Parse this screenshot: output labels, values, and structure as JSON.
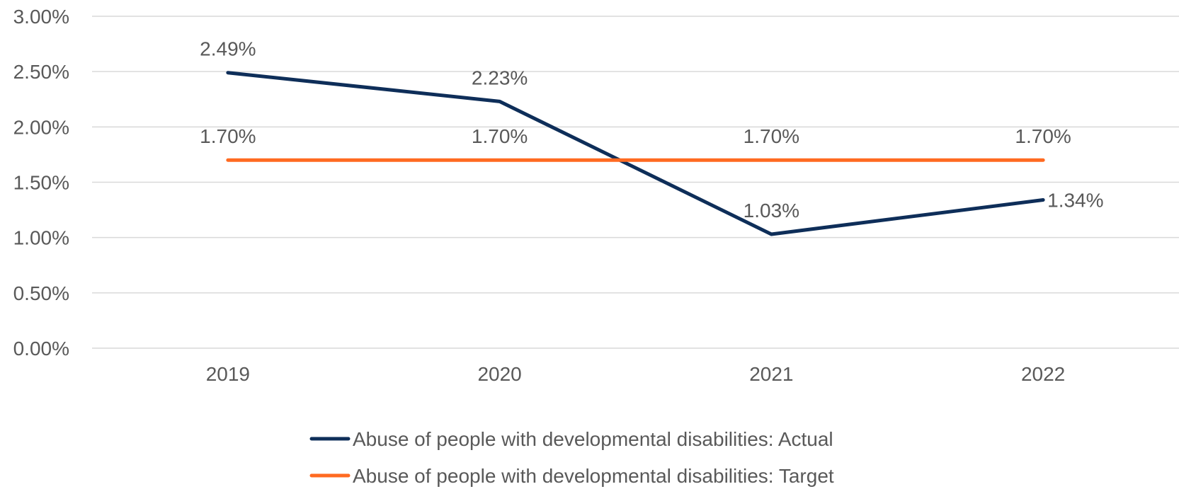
{
  "chart_data": {
    "type": "line",
    "categories": [
      "2019",
      "2020",
      "2021",
      "2022"
    ],
    "yticks": [
      "0.00%",
      "0.50%",
      "1.00%",
      "1.50%",
      "2.00%",
      "2.50%",
      "3.00%"
    ],
    "ylim": [
      0,
      3
    ],
    "grid": true,
    "legend_position": "bottom",
    "series": [
      {
        "name": "Abuse of people with developmental disabilities: Actual",
        "values": [
          2.49,
          2.23,
          1.03,
          1.34
        ],
        "labels": [
          "2.49%",
          "2.23%",
          "1.03%",
          "1.34%"
        ],
        "color": "#0e2e59"
      },
      {
        "name": "Abuse of people with developmental disabilities: Target",
        "values": [
          1.7,
          1.7,
          1.7,
          1.7
        ],
        "labels": [
          "1.70%",
          "1.70%",
          "1.70%",
          "1.70%"
        ],
        "color": "#ff6a21"
      }
    ]
  }
}
